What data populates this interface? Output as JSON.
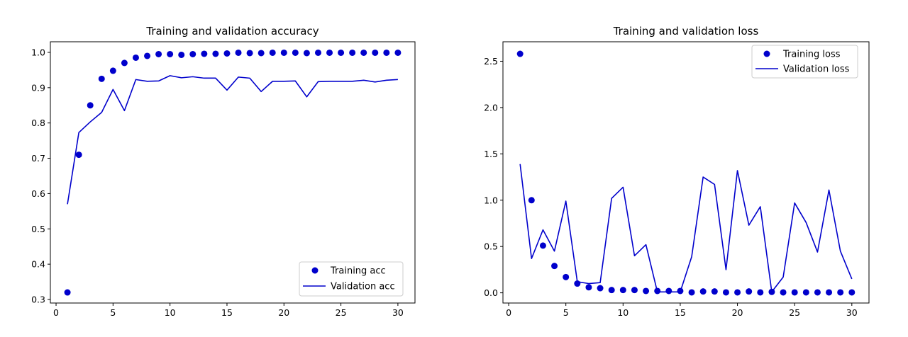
{
  "colors": {
    "series": "#0000cc",
    "axis": "#000000",
    "legend_border": "#cccccc"
  },
  "chart_data": [
    {
      "type": "line",
      "title": "Training and validation accuracy",
      "xlabel": "",
      "ylabel": "",
      "xlim": [
        -0.5,
        31.5
      ],
      "ylim": [
        0.29,
        1.03
      ],
      "xticks": [
        0,
        5,
        10,
        15,
        20,
        25,
        30
      ],
      "yticks": [
        0.3,
        0.4,
        0.5,
        0.6,
        0.7,
        0.8,
        0.9,
        1.0
      ],
      "ytick_labels": [
        "0.3",
        "0.4",
        "0.5",
        "0.6",
        "0.7",
        "0.8",
        "0.9",
        "1.0"
      ],
      "grid": false,
      "legend_position": "lower-right",
      "x": [
        1,
        2,
        3,
        4,
        5,
        6,
        7,
        8,
        9,
        10,
        11,
        12,
        13,
        14,
        15,
        16,
        17,
        18,
        19,
        20,
        21,
        22,
        23,
        24,
        25,
        26,
        27,
        28,
        29,
        30
      ],
      "series": [
        {
          "name": "Training acc",
          "style": "points",
          "values": [
            0.32,
            0.71,
            0.85,
            0.925,
            0.948,
            0.97,
            0.985,
            0.99,
            0.995,
            0.995,
            0.993,
            0.995,
            0.996,
            0.996,
            0.997,
            0.999,
            0.998,
            0.998,
            0.999,
            0.999,
            0.999,
            0.998,
            0.999,
            0.999,
            0.999,
            0.999,
            0.999,
            0.999,
            0.999,
            0.999
          ]
        },
        {
          "name": "Validation acc",
          "style": "line",
          "values": [
            0.57,
            0.773,
            0.803,
            0.83,
            0.895,
            0.835,
            0.923,
            0.918,
            0.919,
            0.934,
            0.928,
            0.931,
            0.927,
            0.927,
            0.893,
            0.93,
            0.927,
            0.889,
            0.918,
            0.918,
            0.919,
            0.874,
            0.917,
            0.918,
            0.918,
            0.918,
            0.921,
            0.916,
            0.921,
            0.923
          ]
        }
      ]
    },
    {
      "type": "line",
      "title": "Training and validation loss",
      "xlabel": "",
      "ylabel": "",
      "xlim": [
        -0.5,
        31.5
      ],
      "ylim": [
        -0.11,
        2.71
      ],
      "xticks": [
        0,
        5,
        10,
        15,
        20,
        25,
        30
      ],
      "yticks": [
        0.0,
        0.5,
        1.0,
        1.5,
        2.0,
        2.5
      ],
      "ytick_labels": [
        "0.0",
        "0.5",
        "1.0",
        "1.5",
        "2.0",
        "2.5"
      ],
      "grid": false,
      "legend_position": "upper-right",
      "x": [
        1,
        2,
        3,
        4,
        5,
        6,
        7,
        8,
        9,
        10,
        11,
        12,
        13,
        14,
        15,
        16,
        17,
        18,
        19,
        20,
        21,
        22,
        23,
        24,
        25,
        26,
        27,
        28,
        29,
        30
      ],
      "series": [
        {
          "name": "Training loss",
          "style": "points",
          "values": [
            2.58,
            1.0,
            0.51,
            0.29,
            0.17,
            0.1,
            0.06,
            0.05,
            0.03,
            0.03,
            0.03,
            0.02,
            0.02,
            0.02,
            0.02,
            0.005,
            0.015,
            0.015,
            0.005,
            0.005,
            0.015,
            0.005,
            0.01,
            0.005,
            0.005,
            0.005,
            0.005,
            0.005,
            0.005,
            0.005
          ]
        },
        {
          "name": "Validation loss",
          "style": "line",
          "values": [
            1.39,
            0.37,
            0.68,
            0.45,
            0.99,
            0.12,
            0.1,
            0.11,
            1.02,
            1.14,
            0.4,
            0.52,
            0.01,
            0.01,
            0.01,
            0.39,
            1.25,
            1.17,
            0.25,
            1.32,
            0.73,
            0.93,
            0.01,
            0.17,
            0.97,
            0.76,
            0.44,
            1.11,
            0.45,
            0.15
          ]
        }
      ]
    }
  ]
}
